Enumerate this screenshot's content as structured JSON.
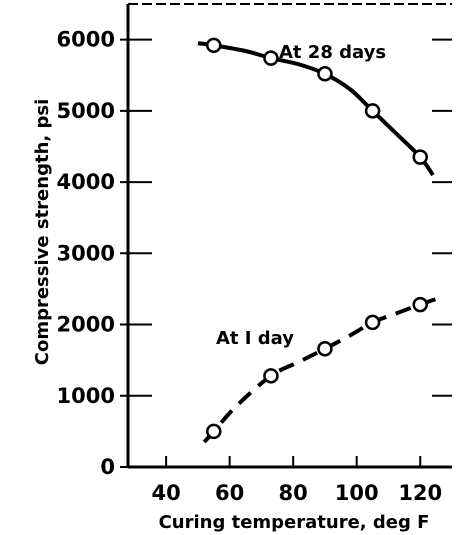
{
  "chart_data": {
    "type": "line",
    "xlabel": "Curing temperature, deg F",
    "ylabel": "Compressive strength, psi",
    "xlim": [
      28,
      130
    ],
    "ylim": [
      0,
      6500
    ],
    "xticks": [
      40,
      60,
      80,
      100,
      120
    ],
    "yticks": [
      0,
      1000,
      2000,
      3000,
      4000,
      5000,
      6000
    ],
    "x_tick_labels": [
      "40",
      "60",
      "80",
      "100",
      "120"
    ],
    "y_tick_labels": [
      "0",
      "1000",
      "2000",
      "3000",
      "4000",
      "5000",
      "6000"
    ],
    "grid": false,
    "series": [
      {
        "name": "At 28 days",
        "line_style": "solid",
        "points": [
          {
            "x": 55,
            "y": 5920
          },
          {
            "x": 73,
            "y": 5740
          },
          {
            "x": 90,
            "y": 5520
          },
          {
            "x": 105,
            "y": 5000
          },
          {
            "x": 120,
            "y": 4350
          }
        ],
        "curve": [
          {
            "x": 50,
            "y": 5950
          },
          {
            "x": 55,
            "y": 5920
          },
          {
            "x": 65,
            "y": 5840
          },
          {
            "x": 73,
            "y": 5740
          },
          {
            "x": 82,
            "y": 5650
          },
          {
            "x": 90,
            "y": 5520
          },
          {
            "x": 98,
            "y": 5300
          },
          {
            "x": 105,
            "y": 5000
          },
          {
            "x": 112,
            "y": 4700
          },
          {
            "x": 120,
            "y": 4350
          },
          {
            "x": 124,
            "y": 4100
          }
        ]
      },
      {
        "name": "At 1 day",
        "line_style": "dashed",
        "points": [
          {
            "x": 55,
            "y": 500
          },
          {
            "x": 73,
            "y": 1280
          },
          {
            "x": 90,
            "y": 1660
          },
          {
            "x": 105,
            "y": 2030
          },
          {
            "x": 120,
            "y": 2280
          }
        ],
        "curve": [
          {
            "x": 52,
            "y": 350
          },
          {
            "x": 55,
            "y": 500
          },
          {
            "x": 62,
            "y": 850
          },
          {
            "x": 73,
            "y": 1280
          },
          {
            "x": 82,
            "y": 1480
          },
          {
            "x": 90,
            "y": 1660
          },
          {
            "x": 98,
            "y": 1850
          },
          {
            "x": 105,
            "y": 2030
          },
          {
            "x": 112,
            "y": 2150
          },
          {
            "x": 120,
            "y": 2280
          },
          {
            "x": 127,
            "y": 2390
          }
        ]
      }
    ],
    "annotations": [
      {
        "text": "At 28 days",
        "x": 88,
        "y": 5950
      },
      {
        "text": "At I day",
        "x": 70,
        "y": 1770
      }
    ]
  },
  "colors": {
    "ink": "#000000",
    "background": "#ffffff"
  }
}
